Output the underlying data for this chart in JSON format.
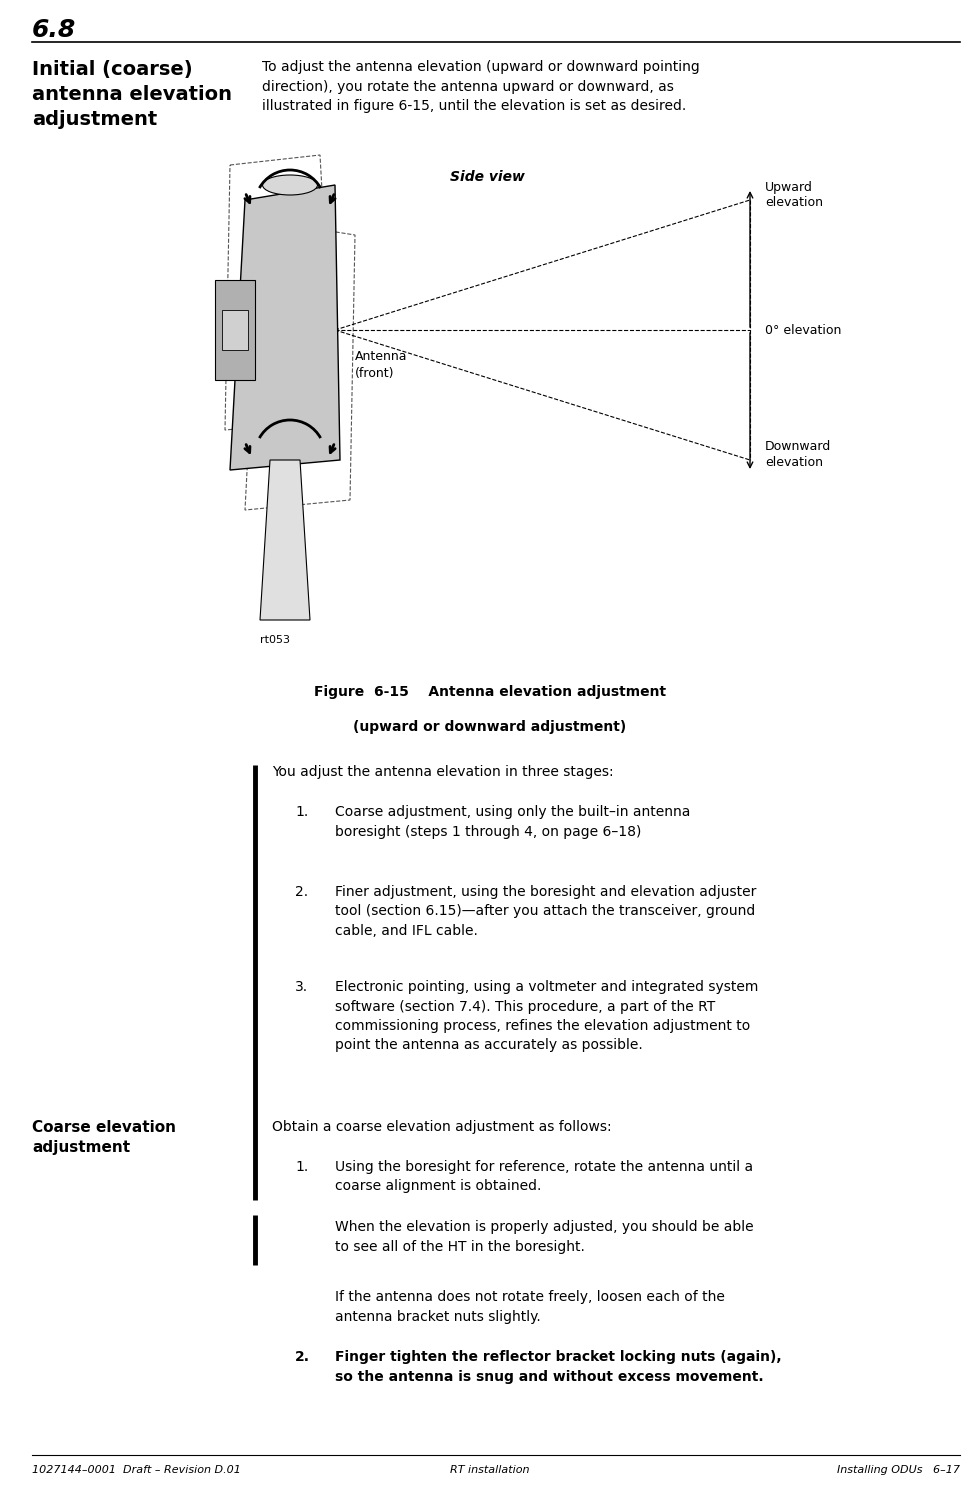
{
  "page_number": "6.8",
  "section_title_left": "Initial (coarse)\nantenna elevation\nadjustment",
  "intro_text": "To adjust the antenna elevation (upward or downward pointing\ndirection), you rotate the antenna upward or downward, as\nillustrated in figure 6-15, until the elevation is set as desired.",
  "figure_caption_bold": "Figure  6-15    Antenna elevation adjustment",
  "figure_caption_normal": "(upward or downward adjustment)",
  "side_view_label": "Side view",
  "antenna_label": "Antenna\n(front)",
  "rt_label": "rt053",
  "upward_label": "Upward\nelevation",
  "zero_label": "0° elevation",
  "downward_label": "Downward\nelevation",
  "three_stages_text": "You adjust the antenna elevation in three stages:",
  "stage1": "Coarse adjustment, using only the built–in antenna\nboresight (steps 1 through 4, on page 6–18)",
  "stage2": "Finer adjustment, using the boresight and elevation adjuster\ntool (section 6.15)—after you attach the transceiver, ground\ncable, and IFL cable.",
  "stage3": "Electronic pointing, using a voltmeter and integrated system\nsoftware (section 7.4). This procedure, a part of the RT\ncommissioning process, refines the elevation adjustment to\npoint the antenna as accurately as possible.",
  "coarse_heading": "Coarse elevation\nadjustment",
  "obtain_text": "Obtain a coarse elevation adjustment as follows:",
  "step1_text": "Using the boresight for reference, rotate the antenna until a\ncoarse alignment is obtained.",
  "step1_note1": "When the elevation is properly adjusted, you should be able\nto see all of the HT in the boresight.",
  "step1_note2": "If the antenna does not rotate freely, loosen each of the\nantenna bracket nuts slightly.",
  "step2_text_bold": "Finger tighten the reflector bracket locking nuts (again),\nso the antenna is snug and without excess movement.",
  "footer_left": "1027144–0001  Draft – Revision D.01",
  "footer_center": "RT installation",
  "footer_right": "Installing ODUs   6–17",
  "bg_color": "#ffffff",
  "text_color": "#000000",
  "page_width": 9.8,
  "page_height": 14.89
}
